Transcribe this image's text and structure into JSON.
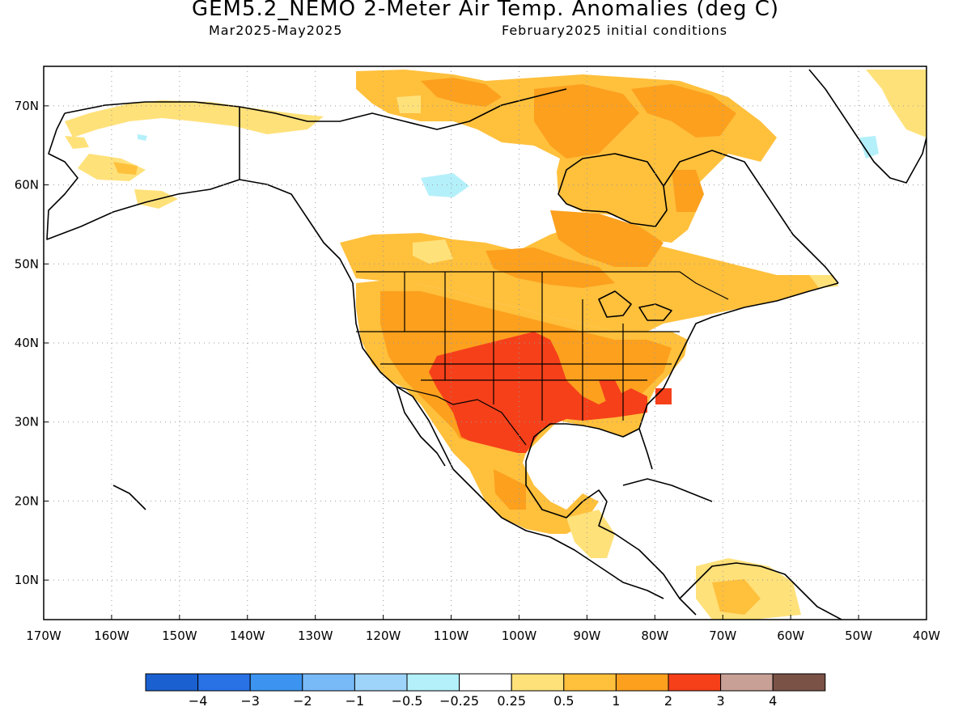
{
  "header": {
    "title": "GEM5.2_NEMO 2-Meter Air Temp. Anomalies (deg C)",
    "period": "Mar2025-May2025",
    "init": "February2025 initial conditions"
  },
  "map": {
    "lon_range": [
      -170,
      -40
    ],
    "lat_range": [
      5,
      75
    ],
    "lon_ticks": [
      {
        "value": -170,
        "label": "170W"
      },
      {
        "value": -160,
        "label": "160W"
      },
      {
        "value": -150,
        "label": "150W"
      },
      {
        "value": -140,
        "label": "140W"
      },
      {
        "value": -130,
        "label": "130W"
      },
      {
        "value": -120,
        "label": "120W"
      },
      {
        "value": -110,
        "label": "110W"
      },
      {
        "value": -100,
        "label": "100W"
      },
      {
        "value": -90,
        "label": "90W"
      },
      {
        "value": -80,
        "label": "80W"
      },
      {
        "value": -70,
        "label": "70W"
      },
      {
        "value": -60,
        "label": "60W"
      },
      {
        "value": -50,
        "label": "50W"
      },
      {
        "value": -40,
        "label": "40W"
      }
    ],
    "lat_ticks": [
      {
        "value": 70,
        "label": "70N"
      },
      {
        "value": 60,
        "label": "60N"
      },
      {
        "value": 50,
        "label": "50N"
      },
      {
        "value": 40,
        "label": "40N"
      },
      {
        "value": 30,
        "label": "30N"
      },
      {
        "value": 20,
        "label": "20N"
      },
      {
        "value": 10,
        "label": "10N"
      }
    ],
    "grid": true
  },
  "colorbar": {
    "colors": [
      "#1a60d0",
      "#2872e6",
      "#3c94f0",
      "#78baf8",
      "#9ed4fa",
      "#b4f0fa",
      "#ffffff",
      "#ffe17a",
      "#ffc03c",
      "#fca01e",
      "#f5401a",
      "#c8a096",
      "#7a5246"
    ],
    "labels": [
      "-4",
      "-3",
      "-2",
      "-1",
      "-0.5",
      "-0.25",
      "0.25",
      "0.5",
      "1",
      "2",
      "3",
      "4"
    ]
  }
}
